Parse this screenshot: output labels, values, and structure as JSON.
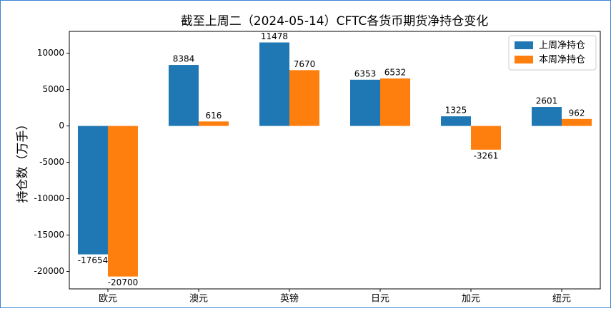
{
  "chart_data": {
    "type": "bar",
    "title": "截至上周二（2024-05-14）CFTC各货币期货净持仓变化",
    "y_label": "持仓数（万手）",
    "categories": [
      "欧元",
      "澳元",
      "英镑",
      "日元",
      "加元",
      "纽元"
    ],
    "series": [
      {
        "name": "上周净持仓",
        "color": "#1f77b4",
        "values": [
          -17654,
          8384,
          11478,
          6353,
          1325,
          2601
        ]
      },
      {
        "name": "本周净持仓",
        "color": "#ff7f0e",
        "values": [
          -20700,
          616,
          7670,
          6532,
          -3261,
          962
        ]
      }
    ],
    "ylim": [
      -22400,
      13000
    ],
    "yticks": [
      -20000,
      -15000,
      -10000,
      -5000,
      0,
      5000,
      10000
    ],
    "legend": "upper right"
  }
}
